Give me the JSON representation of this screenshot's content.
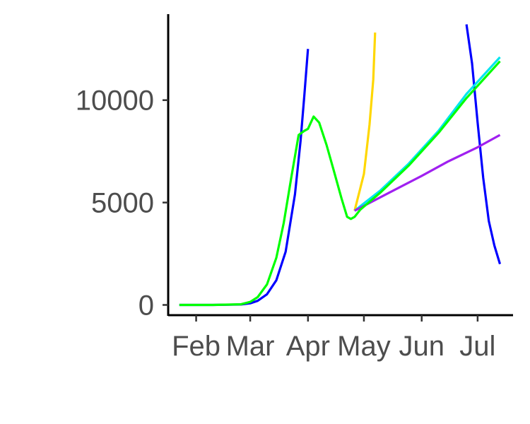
{
  "chart_data": {
    "type": "line",
    "title": "",
    "xlabel": "",
    "ylabel": "",
    "x_ticks": [
      {
        "label": "Feb",
        "date": "2020-02-01"
      },
      {
        "label": "Mar",
        "date": "2020-03-01"
      },
      {
        "label": "Apr",
        "date": "2020-04-01"
      },
      {
        "label": "May",
        "date": "2020-05-01"
      },
      {
        "label": "Jun",
        "date": "2020-06-01"
      },
      {
        "label": "Jul",
        "date": "2020-07-01"
      }
    ],
    "y_ticks": [
      {
        "label": "0",
        "value": 0
      },
      {
        "label": "5000",
        "value": 5000
      },
      {
        "label": "10000",
        "value": 10000
      }
    ],
    "xlim": [
      "2020-01-17",
      "2020-07-20"
    ],
    "ylim": [
      -500,
      14200
    ],
    "grid": false,
    "legend": "none",
    "series": [
      {
        "color": "#0000ff",
        "points": [
          [
            "2020-01-23",
            0
          ],
          [
            "2020-02-10",
            0
          ],
          [
            "2020-02-25",
            20
          ],
          [
            "2020-03-01",
            80
          ],
          [
            "2020-03-05",
            200
          ],
          [
            "2020-03-10",
            520
          ],
          [
            "2020-03-15",
            1200
          ],
          [
            "2020-03-20",
            2600
          ],
          [
            "2020-03-25",
            5400
          ],
          [
            "2020-03-28",
            8000
          ],
          [
            "2020-03-30",
            10200
          ],
          [
            "2020-04-01",
            12500
          ]
        ]
      },
      {
        "color": "#0000ff",
        "points": [
          [
            "2020-06-25",
            13700
          ],
          [
            "2020-06-28",
            11800
          ],
          [
            "2020-07-01",
            8900
          ],
          [
            "2020-07-04",
            6200
          ],
          [
            "2020-07-07",
            4100
          ],
          [
            "2020-07-10",
            2900
          ],
          [
            "2020-07-13",
            2000
          ]
        ]
      },
      {
        "color": "#ffd700",
        "points": [
          [
            "2020-04-26",
            4600
          ],
          [
            "2020-05-01",
            6400
          ],
          [
            "2020-05-04",
            8800
          ],
          [
            "2020-05-06",
            11000
          ],
          [
            "2020-05-07",
            13300
          ]
        ]
      },
      {
        "color": "#00e5ee",
        "points": [
          [
            "2020-04-26",
            4600
          ],
          [
            "2020-05-10",
            5600
          ],
          [
            "2020-05-25",
            6900
          ],
          [
            "2020-06-10",
            8500
          ],
          [
            "2020-06-25",
            10300
          ],
          [
            "2020-07-13",
            12100
          ]
        ]
      },
      {
        "color": "#a020f0",
        "points": [
          [
            "2020-04-26",
            4600
          ],
          [
            "2020-05-15",
            5500
          ],
          [
            "2020-06-01",
            6300
          ],
          [
            "2020-06-15",
            7000
          ],
          [
            "2020-07-01",
            7700
          ],
          [
            "2020-07-13",
            8300
          ]
        ]
      },
      {
        "color": "#00ff00",
        "points": [
          [
            "2020-01-23",
            0
          ],
          [
            "2020-02-10",
            0
          ],
          [
            "2020-02-25",
            30
          ],
          [
            "2020-03-01",
            150
          ],
          [
            "2020-03-05",
            380
          ],
          [
            "2020-03-10",
            1000
          ],
          [
            "2020-03-15",
            2300
          ],
          [
            "2020-03-19",
            4000
          ],
          [
            "2020-03-23",
            6200
          ],
          [
            "2020-03-27",
            8300
          ],
          [
            "2020-03-30",
            8500
          ],
          [
            "2020-04-01",
            8600
          ],
          [
            "2020-04-04",
            9200
          ],
          [
            "2020-04-07",
            8900
          ],
          [
            "2020-04-11",
            7800
          ],
          [
            "2020-04-15",
            6500
          ],
          [
            "2020-04-19",
            5200
          ],
          [
            "2020-04-22",
            4300
          ],
          [
            "2020-04-24",
            4200
          ],
          [
            "2020-04-26",
            4300
          ],
          [
            "2020-04-29",
            4650
          ],
          [
            "2020-05-10",
            5500
          ],
          [
            "2020-05-25",
            6800
          ],
          [
            "2020-06-10",
            8400
          ],
          [
            "2020-06-25",
            10100
          ],
          [
            "2020-07-13",
            11900
          ]
        ]
      }
    ]
  }
}
